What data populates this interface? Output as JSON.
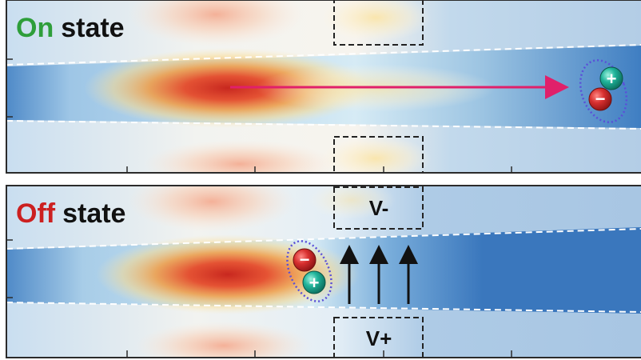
{
  "panels": {
    "on": {
      "state_word": "On",
      "state_label": "state",
      "state_color": "#2e9e3a"
    },
    "off": {
      "state_word": "Off",
      "state_label": "state",
      "state_color": "#cc2020",
      "gate_top_label": "V-",
      "gate_bottom_label": "V+"
    }
  },
  "colors": {
    "frame": "#2b2b2b",
    "flow_arrow": "#e0206a",
    "field_arrow": "#111111",
    "exciton_ring": "#5a4fd8",
    "electron": "#c8282c",
    "hole": "#1fb39a",
    "waveguide_edge": "#ffffff",
    "cold": "#3f7ec2",
    "hot": "#d9301c"
  },
  "particles": {
    "electron_sign": "−",
    "hole_sign": "+"
  }
}
